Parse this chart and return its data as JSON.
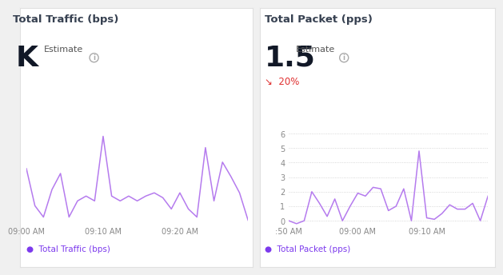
{
  "left_title": "Total Traffic (bps)",
  "left_value": "K",
  "left_estimate_label": "Estimate",
  "left_legend": "Total Traffic (bps)",
  "left_x_labels": [
    "09:00 AM",
    "09:10 AM",
    "09:20 AM"
  ],
  "left_y": [
    3.5,
    1.2,
    0.5,
    2.2,
    3.2,
    0.5,
    1.5,
    1.8,
    1.5,
    5.5,
    1.8,
    1.5,
    1.8,
    1.5,
    1.8,
    2.0,
    1.7,
    1.0,
    2.0,
    1.0,
    0.5,
    4.8,
    1.5,
    3.9,
    3.0,
    2.0,
    0.3
  ],
  "right_title": "Total Packet (pps)",
  "right_value": "1.5",
  "right_estimate_label": "Estimate",
  "right_percent": "20%",
  "right_legend": "Total Packet (pps)",
  "right_x_labels": [
    ":50 AM",
    "09:00 AM",
    "09:10 AM"
  ],
  "right_y": [
    0.0,
    -0.2,
    0.0,
    2.0,
    1.2,
    0.3,
    1.5,
    0.0,
    1.0,
    1.9,
    1.7,
    2.3,
    2.2,
    0.7,
    1.0,
    2.2,
    0.0,
    4.8,
    0.2,
    0.1,
    0.5,
    1.1,
    0.8,
    0.8,
    1.2,
    0.0,
    1.7
  ],
  "right_ylim": [
    -0.3,
    6.3
  ],
  "right_yticks": [
    0,
    1,
    2,
    3,
    4,
    5,
    6
  ],
  "line_color": "#b57bee",
  "bg_color": "#f0f0f0",
  "panel_bg": "#ffffff",
  "title_color": "#374151",
  "value_color": "#111827",
  "grid_color": "#cccccc",
  "tick_color": "#888888",
  "down_arrow_color": "#e03030",
  "legend_dot_color": "#7c3aed",
  "border_color": "#e0e0e0"
}
